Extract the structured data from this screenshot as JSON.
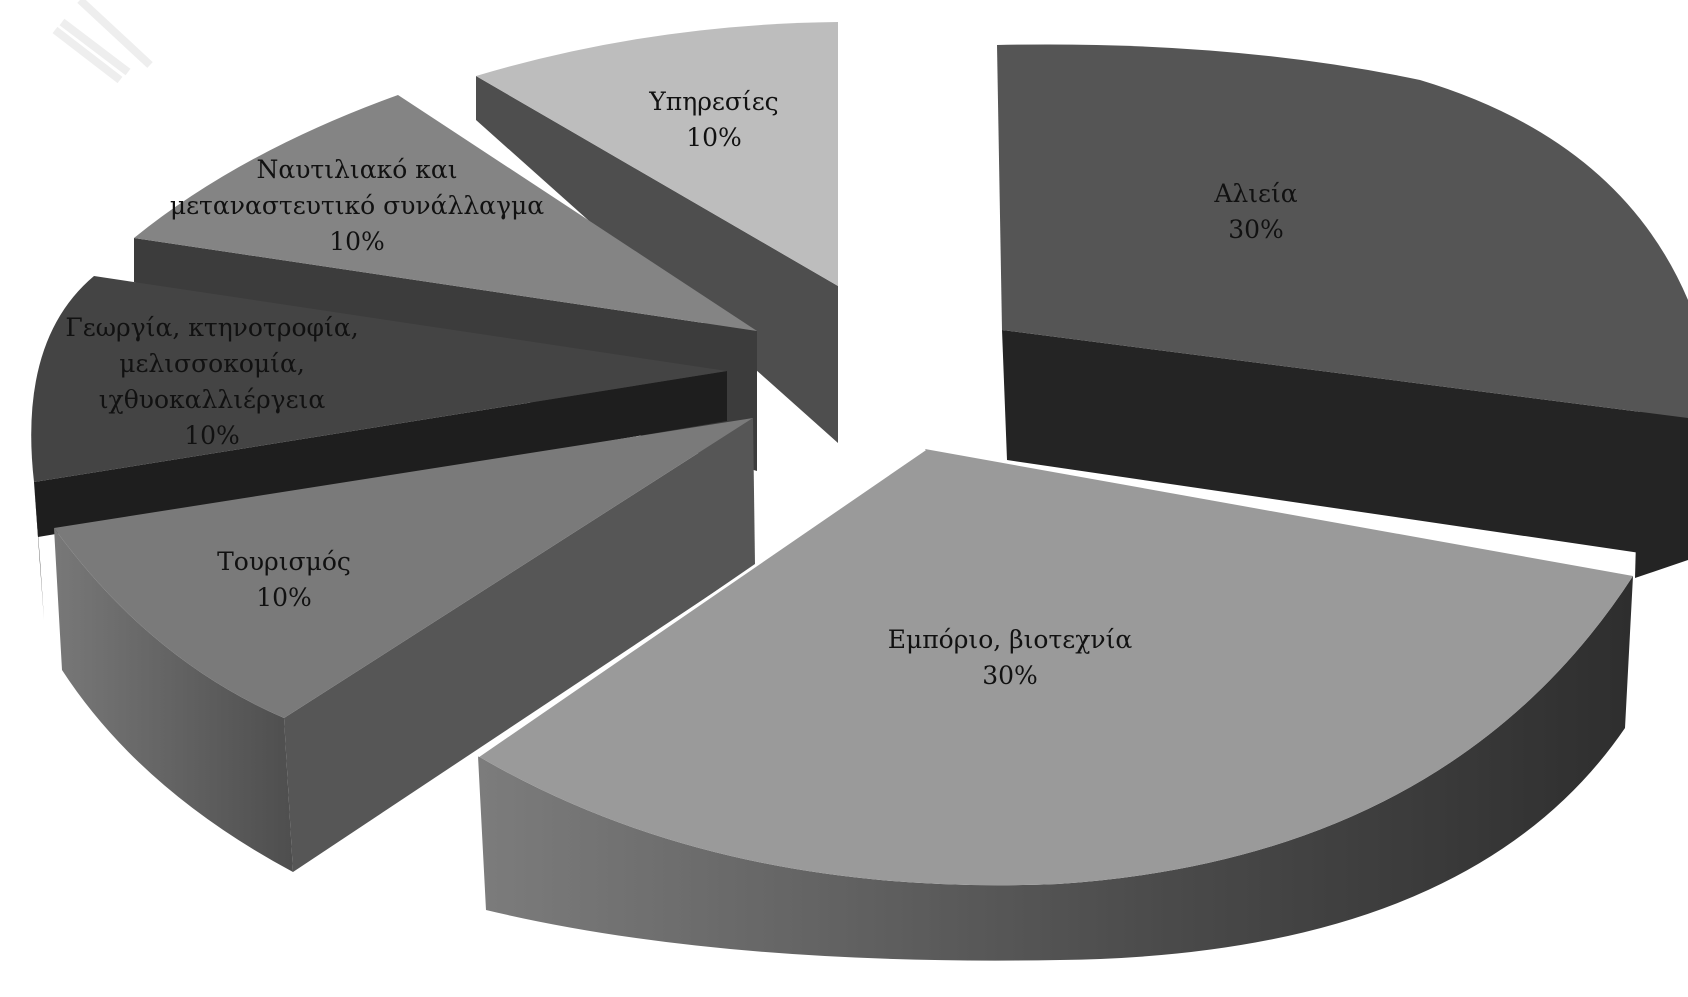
{
  "chart_data": {
    "type": "pie",
    "style": "3d-exploded",
    "slices": [
      {
        "label_lines": [
          "Αλιεία"
        ],
        "percent_label": "30%",
        "value": 30,
        "top_color": "#555555",
        "side_color": "#242424"
      },
      {
        "label_lines": [
          "Εμπόριο, βιοτεχνία"
        ],
        "percent_label": "30%",
        "value": 30,
        "top_color": "#9a9a9a",
        "side_color": "#4a4a4a"
      },
      {
        "label_lines": [
          "Τουρισμός"
        ],
        "percent_label": "10%",
        "value": 10,
        "top_color": "#7a7a7a",
        "side_color": "#565656"
      },
      {
        "label_lines": [
          "Γεωργία, κτηνοτροφία,",
          "μελισσοκομία,",
          "ιχθυοκαλλιέργεια"
        ],
        "percent_label": "10%",
        "value": 10,
        "top_color": "#444444",
        "side_color": "#1e1e1e"
      },
      {
        "label_lines": [
          "Ναυτιλιακό και",
          "μεταναστευτικό συνάλλαγμα"
        ],
        "percent_label": "10%",
        "value": 10,
        "top_color": "#848484",
        "side_color": "#3c3c3c"
      },
      {
        "label_lines": [
          "Υπηρεσίες"
        ],
        "percent_label": "10%",
        "value": 10,
        "top_color": "#bdbdbd",
        "side_color": "#4e4e4e"
      }
    ]
  }
}
